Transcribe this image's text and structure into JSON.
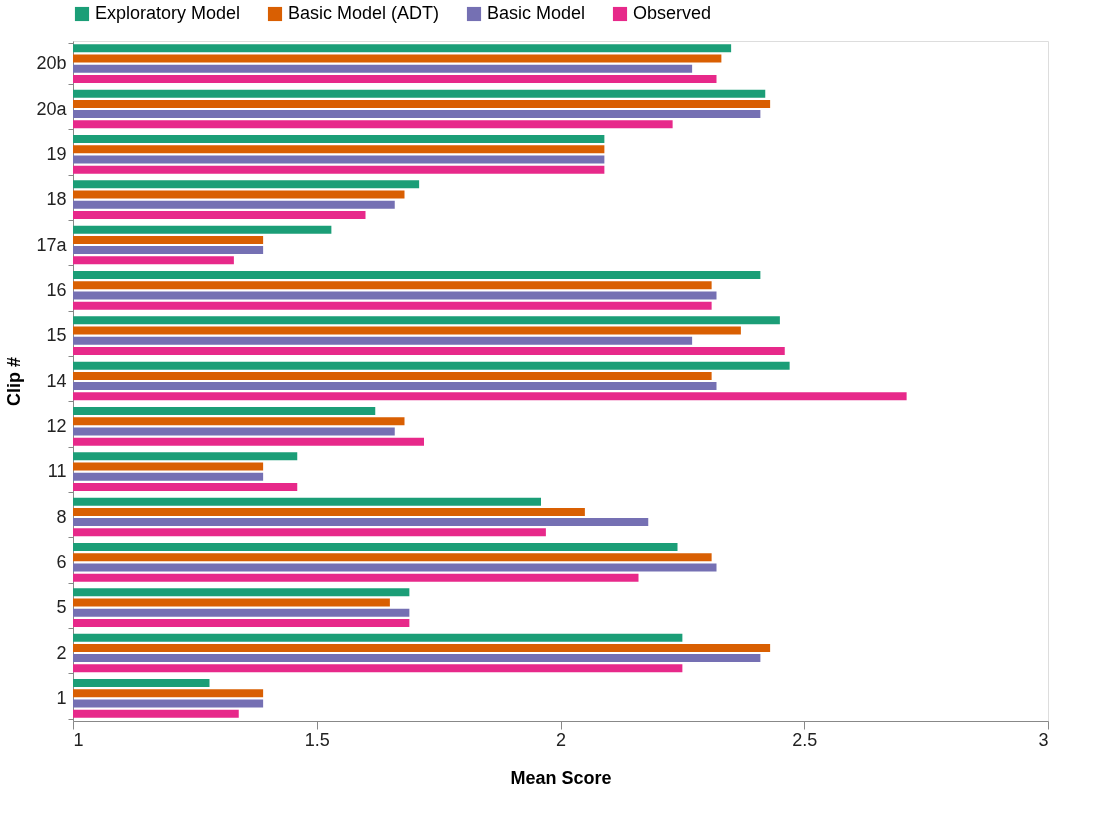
{
  "chart_data": {
    "type": "bar",
    "orientation": "horizontal",
    "xlabel": "Mean Score",
    "ylabel": "Clip #",
    "categories": [
      "20b",
      "20a",
      "19",
      "18",
      "17a",
      "16",
      "15",
      "14",
      "12",
      "11",
      "8",
      "6",
      "5",
      "2",
      "1"
    ],
    "series": [
      {
        "name": "Exploratory Model",
        "color": "#1b9e77",
        "values": [
          2.35,
          2.42,
          2.09,
          1.71,
          1.53,
          2.41,
          2.45,
          2.47,
          1.62,
          1.46,
          1.96,
          2.24,
          1.69,
          2.25,
          1.28
        ]
      },
      {
        "name": "Basic Model (ADT)",
        "color": "#d95f02",
        "values": [
          2.33,
          2.43,
          2.09,
          1.68,
          1.39,
          2.31,
          2.37,
          2.31,
          1.68,
          1.39,
          2.05,
          2.31,
          1.65,
          2.43,
          1.39
        ]
      },
      {
        "name": "Basic Model",
        "color": "#7570b3",
        "values": [
          2.27,
          2.41,
          2.09,
          1.66,
          1.39,
          2.32,
          2.27,
          2.32,
          1.66,
          1.39,
          2.18,
          2.32,
          1.69,
          2.41,
          1.39
        ]
      },
      {
        "name": "Observed",
        "color": "#e7298a",
        "values": [
          2.32,
          2.23,
          2.09,
          1.6,
          1.33,
          2.31,
          2.46,
          2.71,
          1.72,
          1.46,
          1.97,
          2.16,
          1.69,
          2.25,
          1.34
        ]
      }
    ],
    "xlim": [
      1,
      3
    ],
    "xticks": [
      1,
      1.5,
      2,
      2.5,
      3
    ],
    "grid": false,
    "legend": "top"
  }
}
